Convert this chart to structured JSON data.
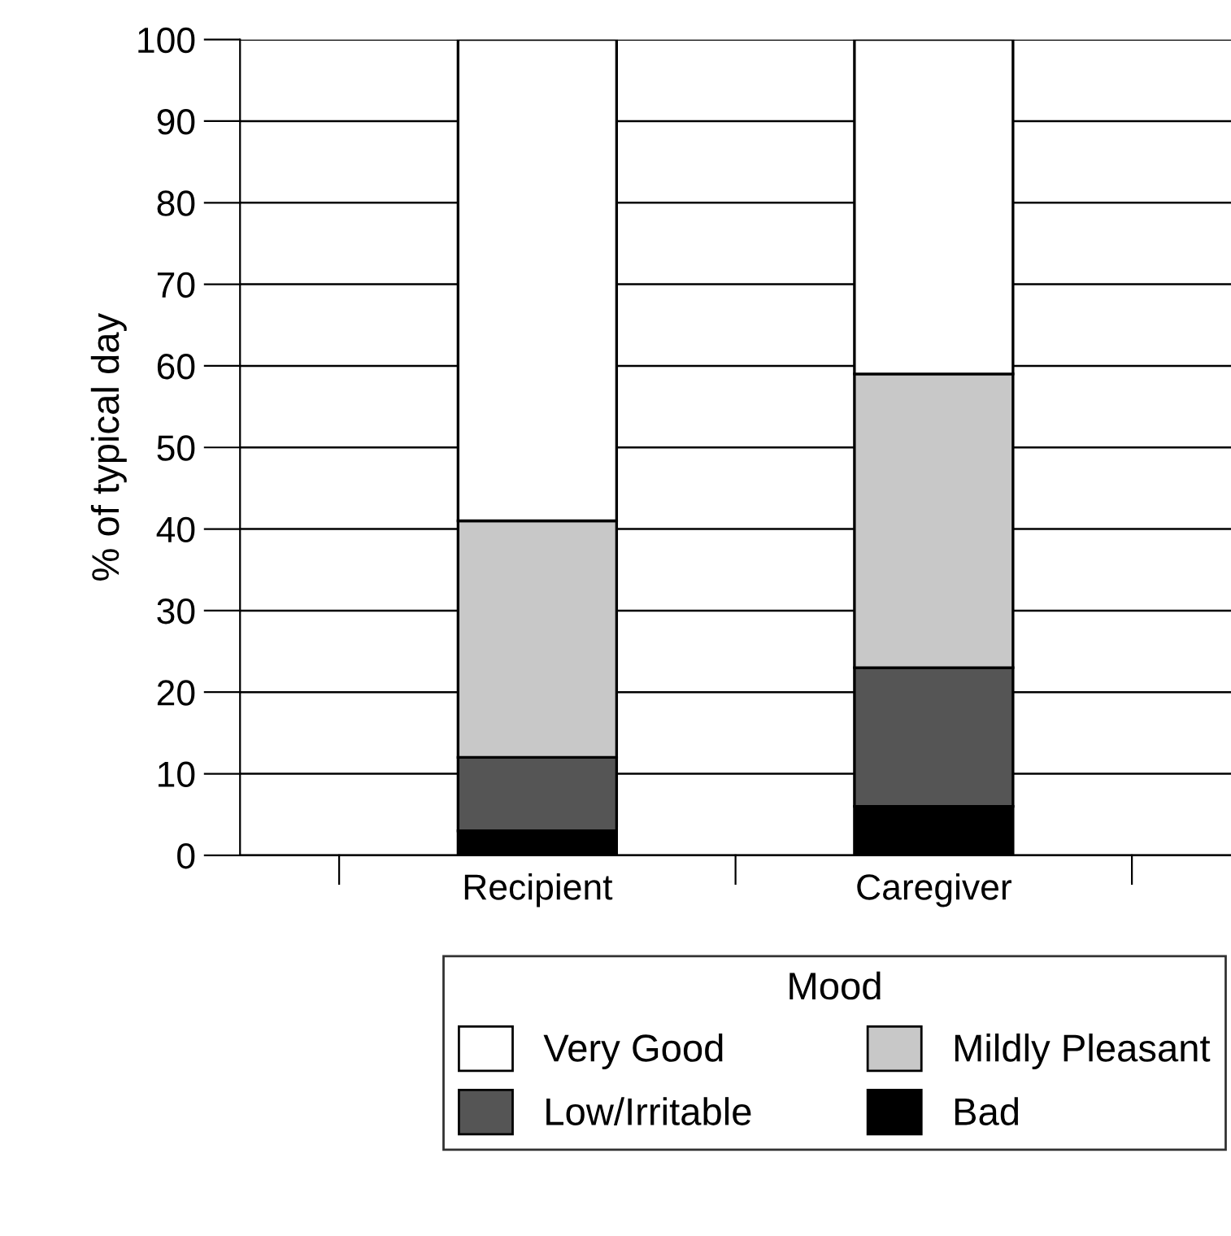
{
  "chart_data": {
    "type": "bar",
    "ylabel": "% of typical day",
    "legend_title": "Mood",
    "categories": [
      "Recipient",
      "Caregiver"
    ],
    "stacked": true,
    "series": [
      {
        "name": "Bad",
        "color": "#000000",
        "values": [
          3,
          6
        ]
      },
      {
        "name": "Low/Irritable",
        "color": "#555555",
        "values": [
          9,
          17
        ]
      },
      {
        "name": "Mildly Pleasant",
        "color": "#c8c8c8",
        "values": [
          29,
          36
        ]
      },
      {
        "name": "Very Good",
        "color": "#ffffff",
        "values": [
          59,
          41
        ]
      }
    ],
    "ylim": [
      0,
      100
    ],
    "yticks": [
      0,
      10,
      20,
      30,
      40,
      50,
      60,
      70,
      80,
      90,
      100
    ],
    "grid": "y",
    "legend": "bottom"
  }
}
